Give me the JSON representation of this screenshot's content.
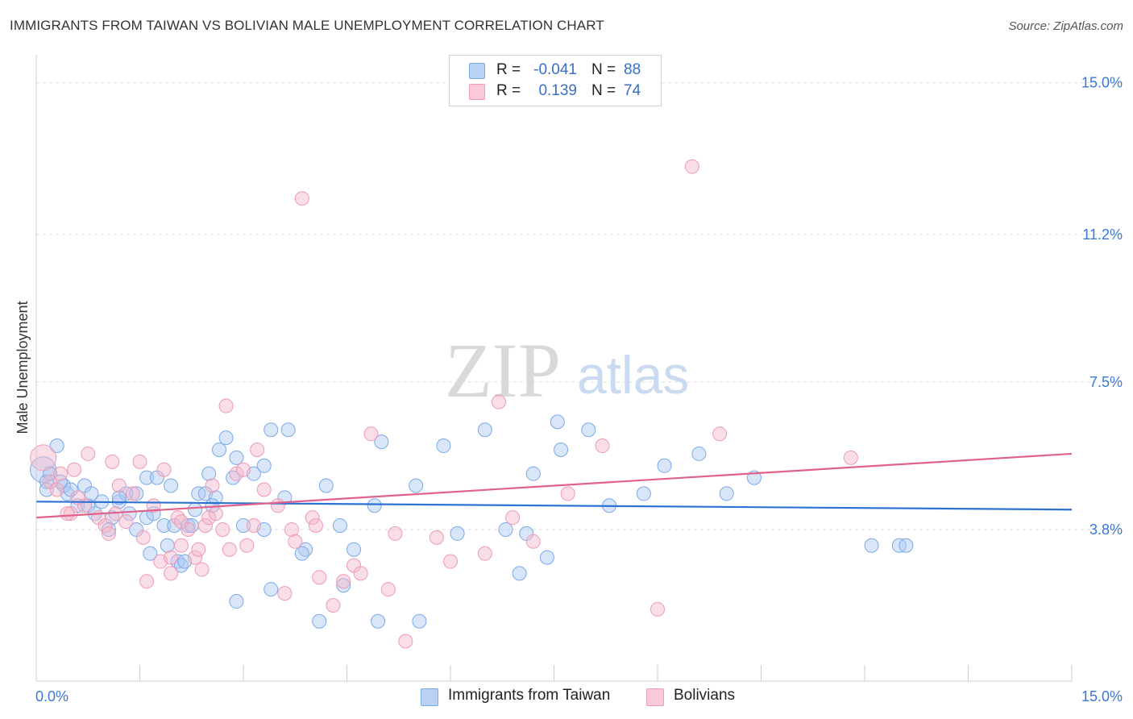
{
  "header": {
    "title": "IMMIGRANTS FROM TAIWAN VS BOLIVIAN MALE UNEMPLOYMENT CORRELATION CHART",
    "source": "Source: ZipAtlas.com"
  },
  "watermark": {
    "zip": "ZIP",
    "atlas": "atlas"
  },
  "legend": {
    "rows": [
      {
        "r_label": "R =",
        "r_value": "-0.041",
        "n_label": "N =",
        "n_value": "88",
        "color": "#a9c8f2"
      },
      {
        "r_label": "R =",
        "r_value": "0.139",
        "n_label": "N =",
        "n_value": "74",
        "color": "#f5b6c9"
      }
    ]
  },
  "chart_data": {
    "type": "scatter",
    "title": "IMMIGRANTS FROM TAIWAN VS BOLIVIAN MALE UNEMPLOYMENT CORRELATION CHART",
    "xlabel": "",
    "ylabel": "Male Unemployment",
    "xlim": [
      0,
      15
    ],
    "ylim": [
      0,
      15.5
    ],
    "x_ticks": [
      "0.0%",
      "15.0%"
    ],
    "y_ticks": [
      {
        "value": 3.8,
        "label": "3.8%"
      },
      {
        "value": 7.5,
        "label": "7.5%"
      },
      {
        "value": 11.2,
        "label": "11.2%"
      },
      {
        "value": 15.0,
        "label": "15.0%"
      }
    ],
    "grid": true,
    "legend_position": "top-center",
    "series": [
      {
        "name": "Immigrants from Taiwan",
        "color": "#7aa9e8",
        "line_color": "#2d72d2",
        "trend": [
          [
            0,
            4.5
          ],
          [
            15,
            4.3
          ]
        ],
        "points": [
          [
            0.1,
            5.3
          ],
          [
            0.15,
            5.0
          ],
          [
            0.3,
            5.9
          ],
          [
            0.2,
            5.2
          ],
          [
            0.15,
            4.8
          ],
          [
            0.4,
            4.9
          ],
          [
            0.45,
            4.7
          ],
          [
            0.5,
            4.8
          ],
          [
            0.6,
            4.4
          ],
          [
            0.7,
            4.9
          ],
          [
            0.75,
            4.4
          ],
          [
            0.8,
            4.7
          ],
          [
            0.85,
            4.2
          ],
          [
            0.95,
            4.5
          ],
          [
            1.1,
            4.1
          ],
          [
            1.2,
            4.5
          ],
          [
            1.3,
            4.7
          ],
          [
            1.35,
            4.2
          ],
          [
            1.45,
            3.8
          ],
          [
            1.6,
            4.1
          ],
          [
            1.6,
            5.1
          ],
          [
            1.75,
            5.1
          ],
          [
            1.85,
            3.9
          ],
          [
            1.95,
            4.9
          ],
          [
            2.0,
            3.9
          ],
          [
            2.05,
            3.0
          ],
          [
            2.2,
            3.9
          ],
          [
            2.25,
            3.9
          ],
          [
            2.35,
            4.7
          ],
          [
            2.45,
            4.7
          ],
          [
            2.5,
            5.2
          ],
          [
            2.6,
            4.6
          ],
          [
            2.65,
            5.8
          ],
          [
            2.75,
            6.1
          ],
          [
            2.85,
            5.1
          ],
          [
            2.9,
            5.6
          ],
          [
            3.0,
            3.9
          ],
          [
            3.15,
            5.2
          ],
          [
            3.3,
            3.8
          ],
          [
            3.3,
            5.4
          ],
          [
            3.4,
            6.3
          ],
          [
            3.6,
            4.6
          ],
          [
            3.65,
            6.3
          ],
          [
            3.9,
            3.3
          ],
          [
            4.2,
            4.9
          ],
          [
            4.4,
            3.9
          ],
          [
            4.6,
            3.3
          ],
          [
            4.9,
            4.4
          ],
          [
            5.0,
            6.0
          ],
          [
            5.5,
            4.9
          ],
          [
            5.9,
            5.9
          ],
          [
            6.1,
            3.7
          ],
          [
            6.5,
            6.3
          ],
          [
            6.8,
            3.8
          ],
          [
            7.2,
            5.2
          ],
          [
            7.4,
            3.1
          ],
          [
            7.6,
            5.8
          ],
          [
            8.0,
            6.3
          ],
          [
            7.55,
            6.5
          ],
          [
            7.1,
            3.7
          ],
          [
            7.0,
            2.7
          ],
          [
            8.3,
            4.4
          ],
          [
            8.8,
            4.7
          ],
          [
            9.1,
            5.4
          ],
          [
            9.6,
            5.7
          ],
          [
            10.0,
            4.7
          ],
          [
            10.4,
            5.1
          ],
          [
            12.1,
            3.4
          ],
          [
            12.5,
            3.4
          ],
          [
            12.6,
            3.4
          ],
          [
            1.2,
            4.6
          ],
          [
            1.45,
            4.7
          ],
          [
            1.7,
            4.2
          ],
          [
            1.9,
            3.4
          ],
          [
            2.3,
            4.3
          ],
          [
            2.55,
            4.4
          ],
          [
            0.35,
            5.0
          ],
          [
            1.05,
            3.8
          ],
          [
            3.85,
            3.2
          ],
          [
            5.55,
            1.5
          ],
          [
            4.95,
            1.5
          ],
          [
            3.4,
            2.3
          ],
          [
            2.9,
            2.0
          ],
          [
            1.65,
            3.2
          ],
          [
            4.1,
            1.5
          ],
          [
            4.45,
            2.4
          ],
          [
            2.1,
            2.9
          ],
          [
            2.15,
            3.0
          ]
        ]
      },
      {
        "name": "Bolivians",
        "color": "#f19bb8",
        "line_color": "#e0628c",
        "trend": [
          [
            0,
            4.1
          ],
          [
            15,
            5.7
          ]
        ],
        "points": [
          [
            0.1,
            5.6
          ],
          [
            0.2,
            5.0
          ],
          [
            0.3,
            4.8
          ],
          [
            0.35,
            5.2
          ],
          [
            0.5,
            4.2
          ],
          [
            0.55,
            5.3
          ],
          [
            0.7,
            4.4
          ],
          [
            0.75,
            5.7
          ],
          [
            0.9,
            4.1
          ],
          [
            1.0,
            3.9
          ],
          [
            1.05,
            3.7
          ],
          [
            1.1,
            5.5
          ],
          [
            1.2,
            4.9
          ],
          [
            1.3,
            4.0
          ],
          [
            1.4,
            4.7
          ],
          [
            1.5,
            5.5
          ],
          [
            1.55,
            3.6
          ],
          [
            1.6,
            2.5
          ],
          [
            1.7,
            4.4
          ],
          [
            1.8,
            3.0
          ],
          [
            1.85,
            5.3
          ],
          [
            1.95,
            2.7
          ],
          [
            2.05,
            4.1
          ],
          [
            2.1,
            3.4
          ],
          [
            2.2,
            3.8
          ],
          [
            2.3,
            3.1
          ],
          [
            2.4,
            2.8
          ],
          [
            2.45,
            3.9
          ],
          [
            2.5,
            4.1
          ],
          [
            2.55,
            4.9
          ],
          [
            2.6,
            4.2
          ],
          [
            2.7,
            3.8
          ],
          [
            2.75,
            6.9
          ],
          [
            2.8,
            3.3
          ],
          [
            2.9,
            5.2
          ],
          [
            3.0,
            5.3
          ],
          [
            3.05,
            3.4
          ],
          [
            3.15,
            3.9
          ],
          [
            3.2,
            5.8
          ],
          [
            3.3,
            4.8
          ],
          [
            3.5,
            4.4
          ],
          [
            3.6,
            2.2
          ],
          [
            3.7,
            3.8
          ],
          [
            3.75,
            3.5
          ],
          [
            3.85,
            12.1
          ],
          [
            4.0,
            4.1
          ],
          [
            4.05,
            3.9
          ],
          [
            4.1,
            2.6
          ],
          [
            4.3,
            1.9
          ],
          [
            4.45,
            2.5
          ],
          [
            4.6,
            2.9
          ],
          [
            4.7,
            2.7
          ],
          [
            4.85,
            6.2
          ],
          [
            5.1,
            2.3
          ],
          [
            5.2,
            3.7
          ],
          [
            5.35,
            1.0
          ],
          [
            5.8,
            3.6
          ],
          [
            6.0,
            3.0
          ],
          [
            6.5,
            3.2
          ],
          [
            6.7,
            7.0
          ],
          [
            6.9,
            4.1
          ],
          [
            7.2,
            3.5
          ],
          [
            7.7,
            4.7
          ],
          [
            8.2,
            5.9
          ],
          [
            9.0,
            1.8
          ],
          [
            9.5,
            12.9
          ],
          [
            9.9,
            6.2
          ],
          [
            11.8,
            5.6
          ],
          [
            2.35,
            3.3
          ],
          [
            1.95,
            3.1
          ],
          [
            0.6,
            4.6
          ],
          [
            0.45,
            4.2
          ],
          [
            1.15,
            4.2
          ],
          [
            2.1,
            4.0
          ]
        ]
      }
    ]
  },
  "bottom_legend": [
    {
      "label": "Immigrants from Taiwan",
      "color": "#a9c8f2"
    },
    {
      "label": "Bolivians",
      "color": "#f5b6c9"
    }
  ]
}
